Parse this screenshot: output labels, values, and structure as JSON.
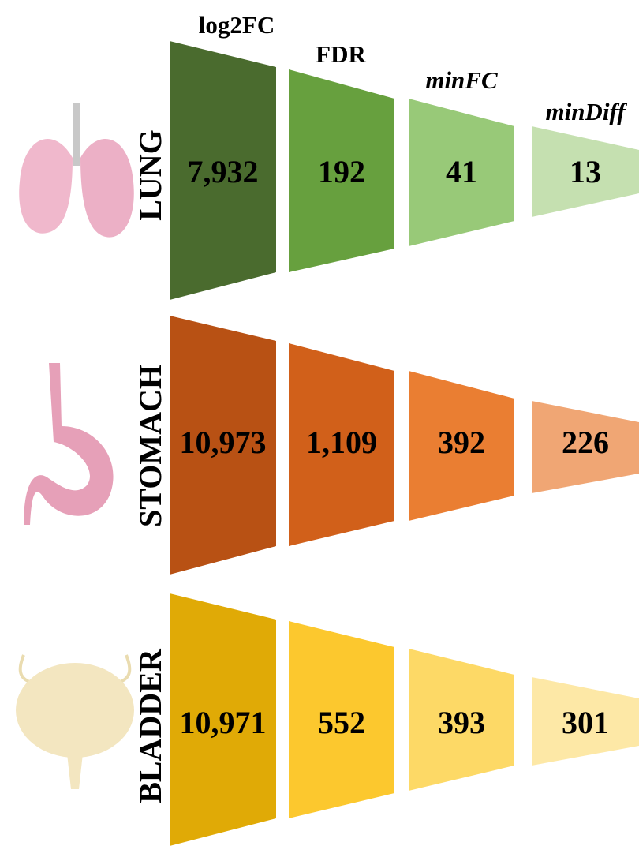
{
  "columns": [
    "log2FC",
    "FDR",
    "minFC",
    "minDiff"
  ],
  "rows": [
    {
      "label": "LUNG",
      "values": [
        "7,932",
        "192",
        "41",
        "13"
      ]
    },
    {
      "label": "STOMACH",
      "values": [
        "10,973",
        "1,109",
        "392",
        "226"
      ]
    },
    {
      "label": "BLADDER",
      "values": [
        "10,971",
        "552",
        "393",
        "301"
      ]
    }
  ]
}
